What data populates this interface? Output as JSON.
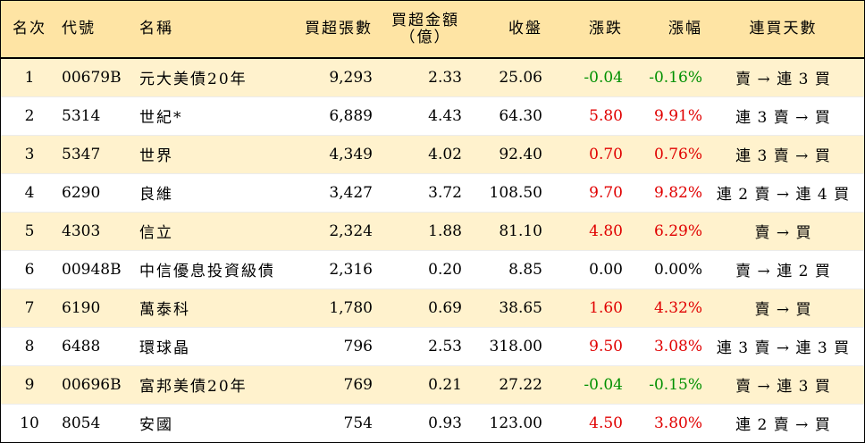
{
  "headers": {
    "rank": "名次",
    "code": "代號",
    "name": "名稱",
    "net_buy_volume": "買超張數",
    "net_buy_amount_line1": "買超金額",
    "net_buy_amount_line2": "（億）",
    "close": "收盤",
    "change": "漲跌",
    "change_pct": "漲幅",
    "consecutive_days": "連買天數"
  },
  "colors": {
    "header_bg": "#fee4a4",
    "alt_row_bg": "#fff2cd",
    "up": "#e00000",
    "down": "#009000"
  },
  "rows": [
    {
      "rank": "1",
      "code": "00679B",
      "name": "元大美債20年",
      "volume": "9,293",
      "amount": "2.33",
      "close": "25.06",
      "change": "-0.04",
      "pct": "-0.16%",
      "days": "賣 → 連 3 買",
      "dir": "down"
    },
    {
      "rank": "2",
      "code": "5314",
      "name": "世紀*",
      "volume": "6,889",
      "amount": "4.43",
      "close": "64.30",
      "change": "5.80",
      "pct": "9.91%",
      "days": "連 3 賣 → 買",
      "dir": "up"
    },
    {
      "rank": "3",
      "code": "5347",
      "name": "世界",
      "volume": "4,349",
      "amount": "4.02",
      "close": "92.40",
      "change": "0.70",
      "pct": "0.76%",
      "days": "連 3 賣 → 買",
      "dir": "up"
    },
    {
      "rank": "4",
      "code": "6290",
      "name": "良維",
      "volume": "3,427",
      "amount": "3.72",
      "close": "108.50",
      "change": "9.70",
      "pct": "9.82%",
      "days": "連 2 賣 → 連 4 買",
      "dir": "up"
    },
    {
      "rank": "5",
      "code": "4303",
      "name": "信立",
      "volume": "2,324",
      "amount": "1.88",
      "close": "81.10",
      "change": "4.80",
      "pct": "6.29%",
      "days": "賣 → 買",
      "dir": "up"
    },
    {
      "rank": "6",
      "code": "00948B",
      "name": "中信優息投資級債",
      "volume": "2,316",
      "amount": "0.20",
      "close": "8.85",
      "change": "0.00",
      "pct": "0.00%",
      "days": "賣 → 連 2 買",
      "dir": "flat"
    },
    {
      "rank": "7",
      "code": "6190",
      "name": "萬泰科",
      "volume": "1,780",
      "amount": "0.69",
      "close": "38.65",
      "change": "1.60",
      "pct": "4.32%",
      "days": "賣 → 買",
      "dir": "up"
    },
    {
      "rank": "8",
      "code": "6488",
      "name": "環球晶",
      "volume": "796",
      "amount": "2.53",
      "close": "318.00",
      "change": "9.50",
      "pct": "3.08%",
      "days": "連 3 賣 → 連 3 買",
      "dir": "up"
    },
    {
      "rank": "9",
      "code": "00696B",
      "name": "富邦美債20年",
      "volume": "769",
      "amount": "0.21",
      "close": "27.22",
      "change": "-0.04",
      "pct": "-0.15%",
      "days": "賣 → 連 3 買",
      "dir": "down"
    },
    {
      "rank": "10",
      "code": "8054",
      "name": "安國",
      "volume": "754",
      "amount": "0.93",
      "close": "123.00",
      "change": "4.50",
      "pct": "3.80%",
      "days": "連 2 賣 → 買",
      "dir": "up"
    }
  ]
}
